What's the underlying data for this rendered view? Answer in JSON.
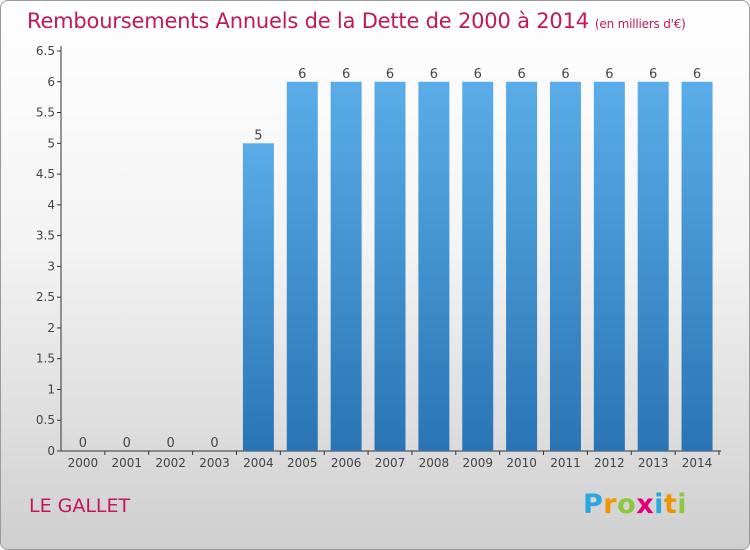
{
  "title": "Remboursements Annuels de la Dette de 2000 à 2014",
  "unit": "(en milliers d'€)",
  "commune": "LE GALLET",
  "logo": {
    "text": "Proxiti",
    "letters": [
      {
        "ch": "P",
        "color": "#2aa7dc"
      },
      {
        "ch": "r",
        "color": "#f29400"
      },
      {
        "ch": "o",
        "color": "#8dc63f"
      },
      {
        "ch": "x",
        "color": "#e2007a"
      },
      {
        "ch": "i",
        "color": "#2aa7dc"
      },
      {
        "ch": "t",
        "color": "#f29400"
      },
      {
        "ch": "i",
        "color": "#8dc63f"
      }
    ]
  },
  "chart_data": {
    "type": "bar",
    "title": "Remboursements Annuels de la Dette de 2000 à 2014",
    "subtitle": "(en milliers d'€)",
    "categories": [
      "2000",
      "2001",
      "2002",
      "2003",
      "2004",
      "2005",
      "2006",
      "2007",
      "2008",
      "2009",
      "2010",
      "2011",
      "2012",
      "2013",
      "2014"
    ],
    "values": [
      0,
      0,
      0,
      0,
      5,
      6,
      6,
      6,
      6,
      6,
      6,
      6,
      6,
      6,
      6
    ],
    "data_labels": [
      "0",
      "0",
      "0",
      "0",
      "5",
      "6",
      "6",
      "6",
      "6",
      "6",
      "6",
      "6",
      "6",
      "6",
      "6"
    ],
    "ylim": [
      0,
      6.5
    ],
    "y_ticks": [
      0,
      0.5,
      1,
      1.5,
      2,
      2.5,
      3,
      3.5,
      4,
      4.5,
      5,
      5.5,
      6,
      6.5
    ],
    "y_tick_labels": [
      "0",
      "0.5",
      "1",
      "1.5",
      "2",
      "2.5",
      "3",
      "3.5",
      "4",
      "4.5",
      "5",
      "5.5",
      "6",
      "6.5"
    ],
    "grid": false,
    "colors": {
      "bar_light": "#5aade8",
      "bar_dark": "#2a74b5",
      "axis": "#333333",
      "text": "#444444",
      "title": "#c2185b"
    }
  }
}
